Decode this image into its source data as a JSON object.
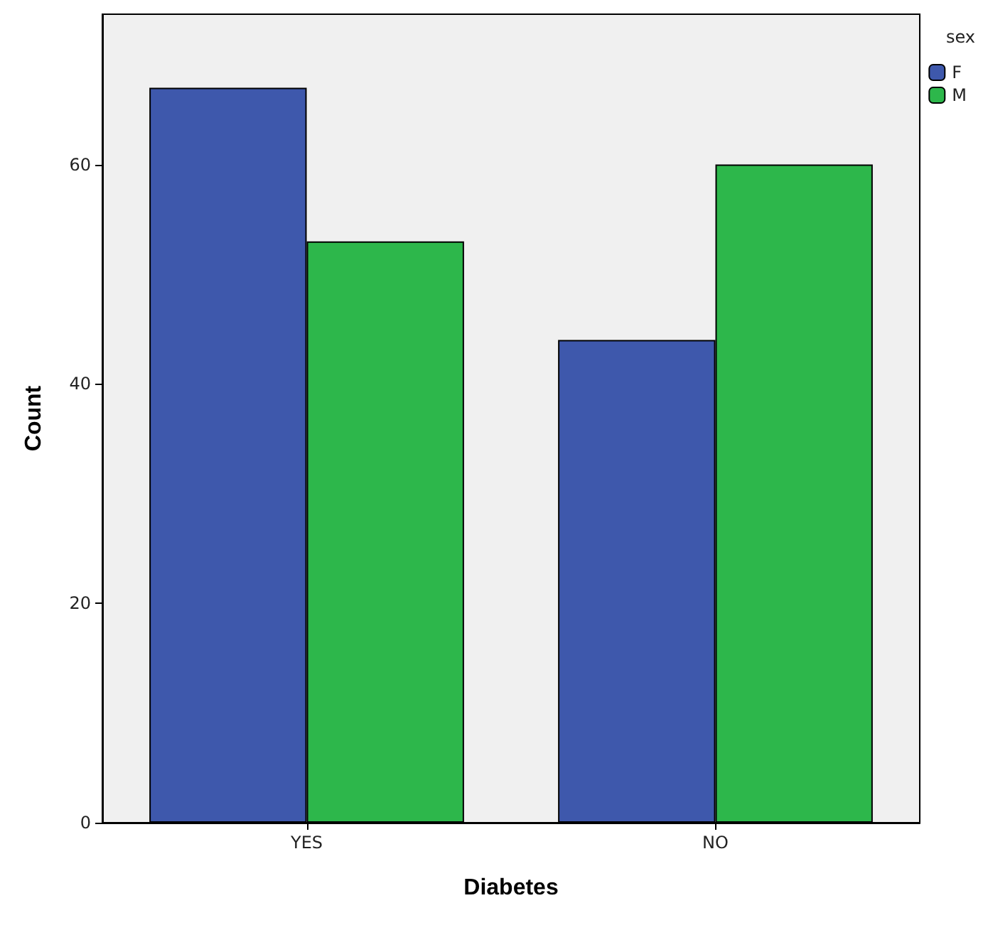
{
  "chart_data": {
    "type": "bar",
    "xlabel": "Diabetes",
    "ylabel": "Count",
    "legend_title": "sex",
    "categories": [
      "YES",
      "NO"
    ],
    "series": [
      {
        "name": "F",
        "color": "#3e58ac",
        "values": [
          67,
          44
        ]
      },
      {
        "name": "M",
        "color": "#2db74b",
        "values": [
          53,
          60
        ]
      }
    ],
    "ylim": [
      0,
      73.7
    ],
    "yticks": [
      0,
      20,
      40,
      60
    ],
    "grid": false,
    "legend": "top right"
  }
}
